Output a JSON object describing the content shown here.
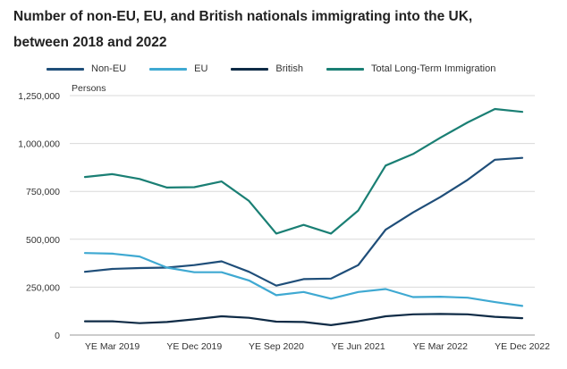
{
  "title_line1": "Number of non-EU, EU, and British nationals immigrating into the UK,",
  "title_line2": "between 2018 and 2022",
  "chart_data": {
    "type": "line",
    "title": "Number of non-EU, EU, and British nationals immigrating into the UK, between 2018 and 2022",
    "ylabel": "Persons",
    "xlabel": "",
    "ylim": [
      0,
      1250000
    ],
    "grid": true,
    "legend_position": "top",
    "y_ticks": [
      "0",
      "250,000",
      "500,000",
      "750,000",
      "1,000,000",
      "1,250,000"
    ],
    "y_tick_values": [
      0,
      250000,
      500000,
      750000,
      1000000,
      1250000
    ],
    "x_tick_labels": [
      "YE Mar 2019",
      "YE Dec 2019",
      "YE Sep 2020",
      "YE Jun 2021",
      "YE Mar 2022",
      "YE Dec 2022"
    ],
    "x_tick_index": [
      1,
      4,
      7,
      10,
      13,
      16
    ],
    "x": [
      "YE Dec 2018",
      "YE Mar 2019",
      "YE Jun 2019",
      "YE Sep 2019",
      "YE Dec 2019",
      "YE Mar 2020",
      "YE Jun 2020",
      "YE Sep 2020",
      "YE Dec 2020",
      "YE Mar 2021",
      "YE Jun 2021",
      "YE Sep 2021",
      "YE Dec 2021",
      "YE Mar 2022",
      "YE Jun 2022",
      "YE Sep 2022",
      "YE Dec 2022"
    ],
    "series": [
      {
        "name": "Non-EU",
        "color": "#1f4e79",
        "values": [
          330000,
          345000,
          350000,
          352000,
          365000,
          385000,
          330000,
          258000,
          292000,
          295000,
          365000,
          550000,
          640000,
          720000,
          810000,
          915000,
          925000
        ]
      },
      {
        "name": "EU",
        "color": "#3fa9d2",
        "values": [
          428000,
          425000,
          410000,
          352000,
          328000,
          328000,
          285000,
          208000,
          225000,
          190000,
          225000,
          240000,
          198000,
          200000,
          195000,
          172000,
          152000
        ]
      },
      {
        "name": "British",
        "color": "#0f2b46",
        "values": [
          72000,
          72000,
          62000,
          68000,
          82000,
          98000,
          90000,
          70000,
          68000,
          52000,
          72000,
          98000,
          108000,
          110000,
          108000,
          95000,
          88000
        ]
      },
      {
        "name": "Total Long-Term Immigration",
        "color": "#1a7f74",
        "values": [
          825000,
          840000,
          815000,
          770000,
          772000,
          802000,
          700000,
          530000,
          575000,
          530000,
          650000,
          885000,
          945000,
          1030000,
          1110000,
          1180000,
          1165000
        ]
      }
    ]
  }
}
